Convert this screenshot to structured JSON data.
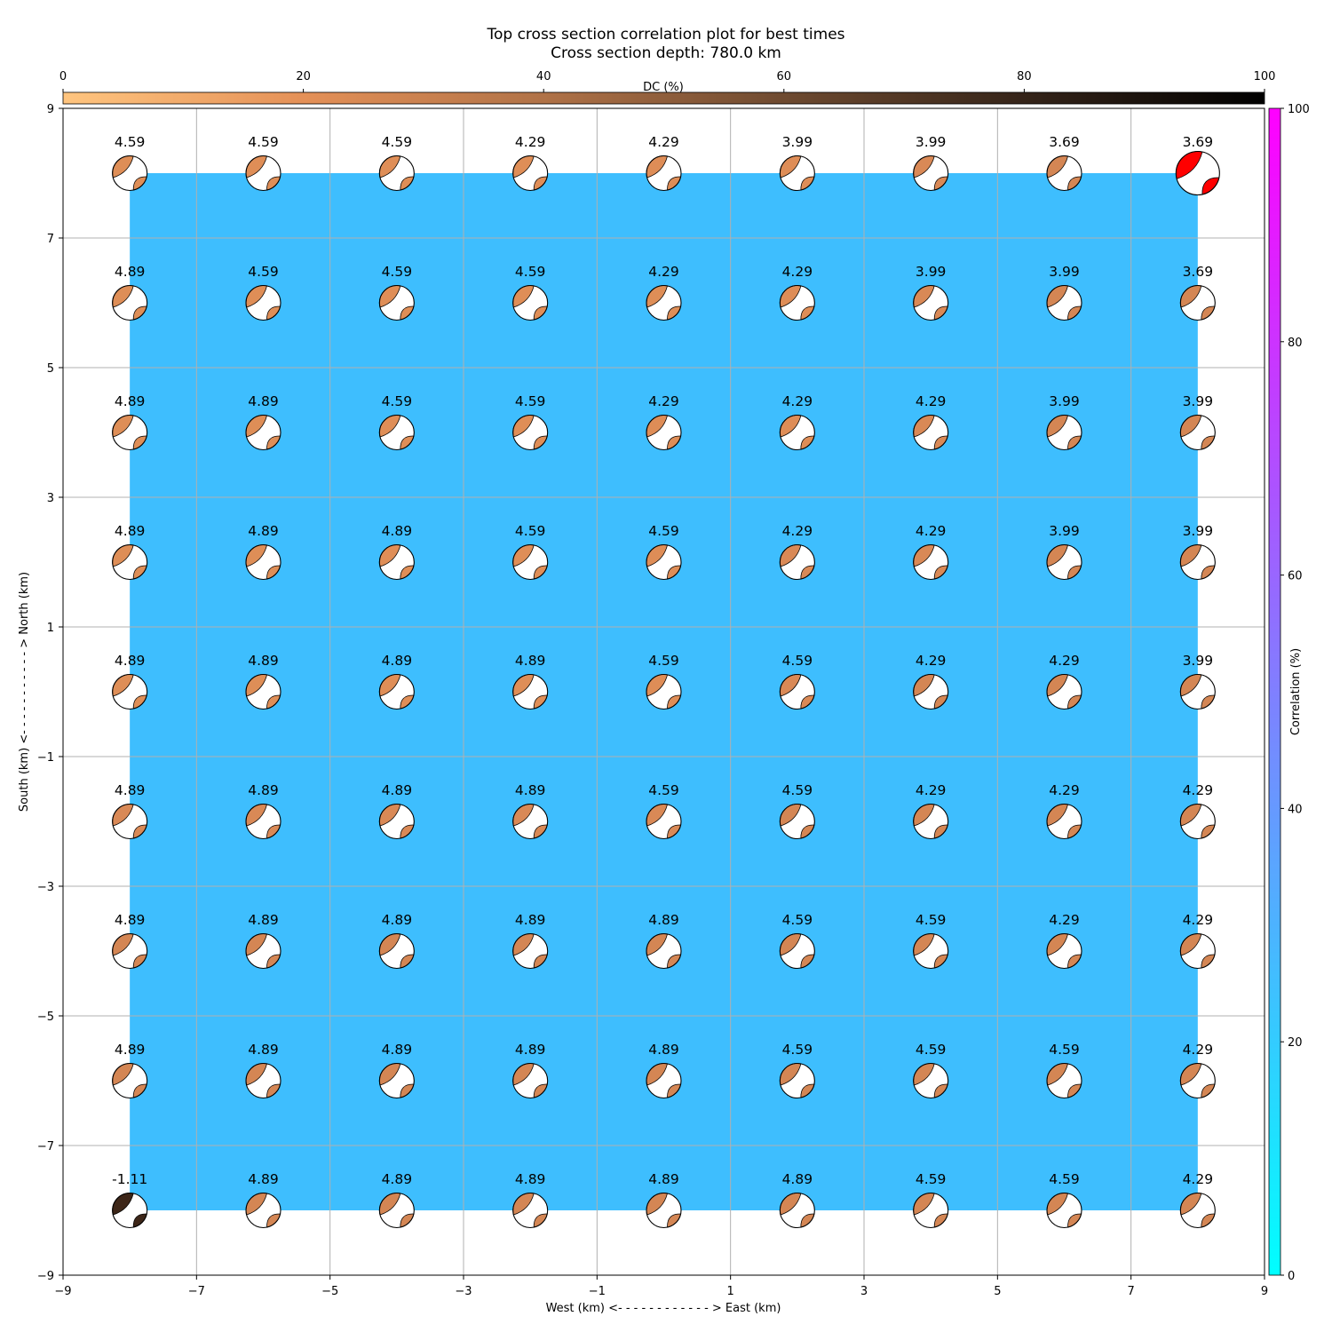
{
  "chart_data": {
    "type": "scatter",
    "title": "Top cross section correlation plot for best times",
    "subtitle": "Cross section depth: 780.0 km",
    "xlabel": "West (km) <- - - - - - - - - - - - > East (km)",
    "ylabel": "South (km) <- - - - - - - - - - - > North (km)",
    "xlim": [
      -9,
      9
    ],
    "ylim": [
      -9,
      9
    ],
    "x_ticks": [
      "−9",
      "−7",
      "−5",
      "−3",
      "−1",
      "1",
      "3",
      "5",
      "7",
      "9"
    ],
    "y_ticks": [
      "−9",
      "−7",
      "−5",
      "−3",
      "−1",
      "1",
      "3",
      "5",
      "7",
      "9"
    ],
    "x_tick_values": [
      -9,
      -7,
      -5,
      -3,
      -1,
      1,
      3,
      5,
      7,
      9
    ],
    "y_tick_values": [
      -9,
      -7,
      -5,
      -3,
      -1,
      1,
      3,
      5,
      7,
      9
    ],
    "grid": true,
    "background_fill": {
      "x_range": [
        -8,
        8
      ],
      "y_range": [
        -8,
        8
      ],
      "color": "#3ebefe",
      "correlation_percent": 25
    },
    "dc_colorbar": {
      "label": "DC (%)",
      "range": [
        0,
        100
      ],
      "ticks": [
        "0",
        "20",
        "40",
        "60",
        "80",
        "100"
      ],
      "colors": [
        "#ffc57f",
        "#e49057",
        "#b07247",
        "#6e4a30",
        "#352419",
        "#000000"
      ]
    },
    "correlation_colorbar": {
      "label": "Correlation (%)",
      "range": [
        0,
        100
      ],
      "ticks": [
        "0",
        "20",
        "40",
        "60",
        "80",
        "100"
      ],
      "colors": [
        "#00ffff",
        "#ff00ff"
      ]
    },
    "x": [
      -8,
      -6,
      -4,
      -2,
      0,
      2,
      4,
      6,
      8
    ],
    "y": [
      8,
      6,
      4,
      2,
      0,
      -2,
      -4,
      -6,
      -8
    ],
    "values": [
      [
        "4.59",
        "4.59",
        "4.59",
        "4.29",
        "4.29",
        "3.99",
        "3.99",
        "3.69",
        "3.69"
      ],
      [
        "4.89",
        "4.59",
        "4.59",
        "4.59",
        "4.29",
        "4.29",
        "3.99",
        "3.99",
        "3.69"
      ],
      [
        "4.89",
        "4.89",
        "4.59",
        "4.59",
        "4.29",
        "4.29",
        "4.29",
        "3.99",
        "3.99"
      ],
      [
        "4.89",
        "4.89",
        "4.89",
        "4.59",
        "4.59",
        "4.29",
        "4.29",
        "3.99",
        "3.99"
      ],
      [
        "4.89",
        "4.89",
        "4.89",
        "4.89",
        "4.59",
        "4.59",
        "4.29",
        "4.29",
        "3.99"
      ],
      [
        "4.89",
        "4.89",
        "4.89",
        "4.89",
        "4.59",
        "4.59",
        "4.29",
        "4.29",
        "4.29"
      ],
      [
        "4.89",
        "4.89",
        "4.89",
        "4.89",
        "4.89",
        "4.59",
        "4.59",
        "4.29",
        "4.29"
      ],
      [
        "4.89",
        "4.89",
        "4.89",
        "4.89",
        "4.89",
        "4.59",
        "4.59",
        "4.59",
        "4.29"
      ],
      [
        "-1.11",
        "4.89",
        "4.89",
        "4.89",
        "4.89",
        "4.89",
        "4.59",
        "4.59",
        "4.29"
      ]
    ],
    "beachball_colors": [
      [
        "#de8e57",
        "#df8e57",
        "#df8e57",
        "#df8e57",
        "#de8d57",
        "#de8d57",
        "#d98956",
        "#d48654",
        "#ff0000"
      ],
      [
        "#de8e57",
        "#df8e57",
        "#df8e57",
        "#df8e57",
        "#de8e57",
        "#de8d57",
        "#d98956",
        "#d48654",
        "#d48654"
      ],
      [
        "#de8e57",
        "#de8e57",
        "#df8e57",
        "#df8e57",
        "#de8d57",
        "#de8d57",
        "#d98956",
        "#d48654",
        "#d48654"
      ],
      [
        "#de8e57",
        "#de8e57",
        "#df8e57",
        "#df8e57",
        "#de8d57",
        "#d98956",
        "#d98956",
        "#d48654",
        "#d48654"
      ],
      [
        "#de8e57",
        "#de8e57",
        "#df8e57",
        "#df8e57",
        "#de8d57",
        "#d98956",
        "#d48654",
        "#d48654",
        "#d48654"
      ],
      [
        "#d98956",
        "#d98956",
        "#d98956",
        "#d98956",
        "#d98956",
        "#d48654",
        "#d48654",
        "#d48654",
        "#d48654"
      ],
      [
        "#d48654",
        "#d48654",
        "#d48654",
        "#d48654",
        "#d48654",
        "#d48654",
        "#d48654",
        "#d48654",
        "#d48654"
      ],
      [
        "#d48654",
        "#d48654",
        "#d48654",
        "#d48654",
        "#d48654",
        "#d48654",
        "#d48654",
        "#d48654",
        "#d48654"
      ],
      [
        "#3d2618",
        "#d48654",
        "#d48654",
        "#d48654",
        "#d48654",
        "#d48654",
        "#d48654",
        "#d48654",
        "#d48654"
      ]
    ]
  }
}
